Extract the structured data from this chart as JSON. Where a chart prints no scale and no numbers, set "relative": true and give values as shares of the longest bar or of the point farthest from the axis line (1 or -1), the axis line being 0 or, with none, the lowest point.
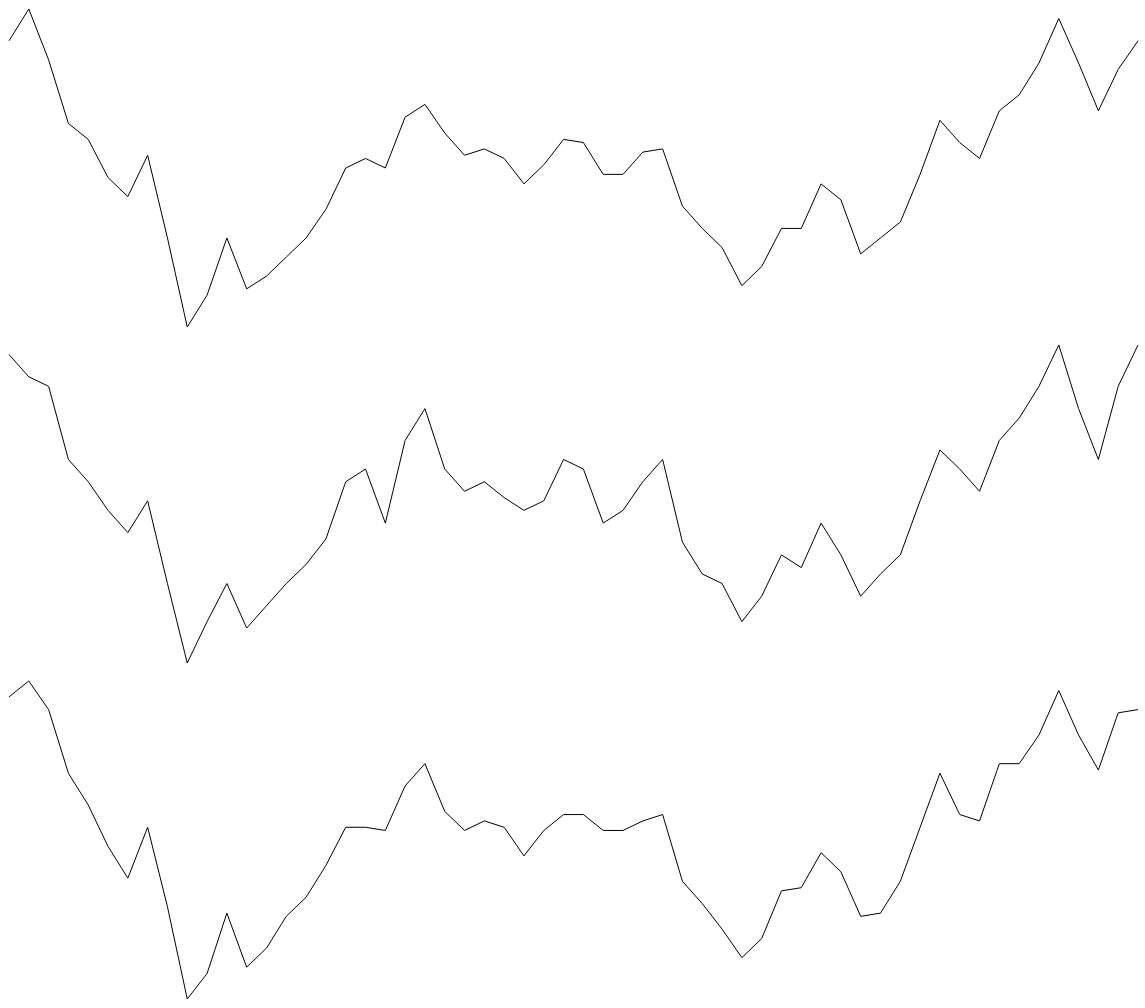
{
  "chart_data": [
    {
      "type": "line",
      "relative": true,
      "categories": [
        null,
        null,
        null,
        null,
        null,
        null,
        null,
        null,
        null,
        null,
        null,
        null,
        null,
        null,
        null,
        null,
        null,
        null,
        null,
        null,
        null,
        null,
        null,
        null,
        null,
        null,
        null,
        null,
        null,
        null,
        null,
        null,
        null,
        null,
        null,
        null,
        null,
        null,
        null,
        null,
        null,
        null,
        null,
        null,
        null,
        null,
        null,
        null,
        null,
        null,
        null,
        null,
        null,
        null,
        null,
        null,
        null,
        null
      ],
      "series": [
        {
          "color": "#000000",
          "values": [
            0.9,
            1.0,
            0.84,
            0.64,
            0.59,
            0.47,
            0.41,
            0.54,
            0.28,
            0,
            0.1,
            0.28,
            0.12,
            0.16,
            0.22,
            0.28,
            0.37,
            0.5,
            0.53,
            0.5,
            0.66,
            0.7,
            0.61,
            0.54,
            0.56,
            0.53,
            0.45,
            0.51,
            0.59,
            0.58,
            0.48,
            0.48,
            0.55,
            0.56,
            0.38,
            0.31,
            0.25,
            0.13,
            0.19,
            0.31,
            0.31,
            0.45,
            0.4,
            0.23,
            0.28,
            0.33,
            0.48,
            0.65,
            0.58,
            0.53,
            0.68,
            0.73,
            0.83,
            0.97,
            0.83,
            0.68,
            0.81,
            0.9
          ]
        }
      ]
    },
    {
      "type": "line",
      "relative": true,
      "categories": [
        null,
        null,
        null,
        null,
        null,
        null,
        null,
        null,
        null,
        null,
        null,
        null,
        null,
        null,
        null,
        null,
        null,
        null,
        null,
        null,
        null,
        null,
        null,
        null,
        null,
        null,
        null,
        null,
        null,
        null,
        null,
        null,
        null,
        null,
        null,
        null,
        null,
        null,
        null,
        null,
        null,
        null,
        null,
        null,
        null,
        null,
        null,
        null,
        null,
        null,
        null,
        null,
        null,
        null,
        null,
        null,
        null,
        null
      ],
      "series": [
        {
          "color": "#000000",
          "values": [
            0.97,
            0.9,
            0.87,
            0.64,
            0.57,
            0.48,
            0.41,
            0.51,
            0.25,
            0,
            0.13,
            0.25,
            0.11,
            0.18,
            0.25,
            0.31,
            0.39,
            0.57,
            0.61,
            0.44,
            0.7,
            0.8,
            0.61,
            0.54,
            0.57,
            0.52,
            0.48,
            0.51,
            0.64,
            0.61,
            0.44,
            0.48,
            0.57,
            0.64,
            0.38,
            0.28,
            0.25,
            0.13,
            0.21,
            0.34,
            0.3,
            0.44,
            0.34,
            0.21,
            0.28,
            0.34,
            0.51,
            0.67,
            0.61,
            0.54,
            0.7,
            0.77,
            0.87,
            1.0,
            0.8,
            0.64,
            0.87,
            1.0
          ]
        }
      ]
    },
    {
      "type": "line",
      "relative": true,
      "categories": [
        null,
        null,
        null,
        null,
        null,
        null,
        null,
        null,
        null,
        null,
        null,
        null,
        null,
        null,
        null,
        null,
        null,
        null,
        null,
        null,
        null,
        null,
        null,
        null,
        null,
        null,
        null,
        null,
        null,
        null,
        null,
        null,
        null,
        null,
        null,
        null,
        null,
        null,
        null,
        null,
        null,
        null,
        null,
        null,
        null,
        null,
        null,
        null,
        null,
        null,
        null,
        null,
        null,
        null,
        null,
        null,
        null,
        null
      ],
      "series": [
        {
          "color": "#000000",
          "values": [
            0.95,
            1.0,
            0.91,
            0.71,
            0.61,
            0.48,
            0.38,
            0.54,
            0.29,
            0,
            0.08,
            0.27,
            0.1,
            0.16,
            0.26,
            0.32,
            0.42,
            0.54,
            0.54,
            0.53,
            0.67,
            0.74,
            0.59,
            0.53,
            0.56,
            0.54,
            0.45,
            0.53,
            0.58,
            0.58,
            0.53,
            0.53,
            0.56,
            0.58,
            0.37,
            0.3,
            0.22,
            0.13,
            0.19,
            0.34,
            0.35,
            0.46,
            0.4,
            0.26,
            0.27,
            0.37,
            0.54,
            0.71,
            0.58,
            0.56,
            0.74,
            0.74,
            0.83,
            0.97,
            0.83,
            0.72,
            0.9,
            0.91
          ]
        }
      ]
    }
  ]
}
